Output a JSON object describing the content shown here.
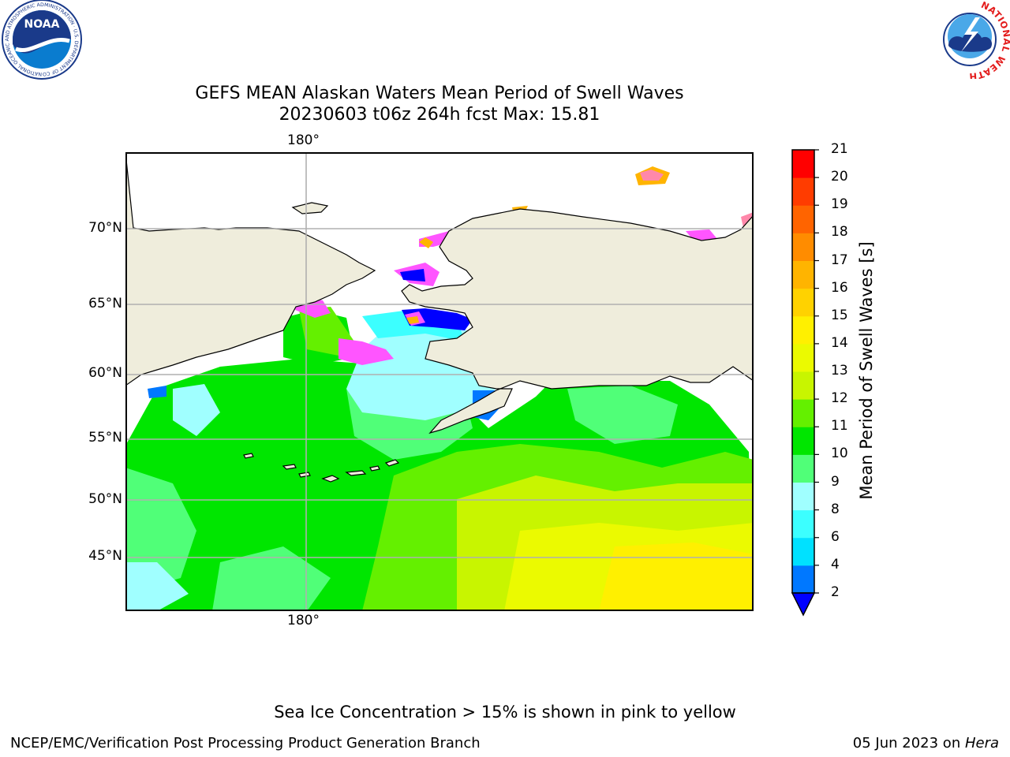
{
  "title": {
    "line1": "GEFS MEAN Alaskan Waters Mean Period of Swell Waves",
    "line2": "20230603 t06z 264h fcst   Max: 15.81"
  },
  "map": {
    "lon_label": "180°",
    "lat_labels": [
      "70°N",
      "65°N",
      "60°N",
      "55°N",
      "50°N",
      "45°N"
    ],
    "land_color": "#efeddc",
    "gridline_color": "#b0b0b0"
  },
  "colorbar": {
    "label": "Mean Period of Swell Waves [s]",
    "ticks": [
      "2",
      "4",
      "6",
      "8",
      "9",
      "10",
      "11",
      "12",
      "13",
      "14",
      "15",
      "16",
      "17",
      "18",
      "19",
      "20",
      "21"
    ],
    "colors": [
      "#0078ff",
      "#00e1ff",
      "#3cffff",
      "#a0ffff",
      "#50ff78",
      "#00e600",
      "#64f000",
      "#c8f500",
      "#ebfa00",
      "#fff000",
      "#ffd200",
      "#ffb400",
      "#ff8c00",
      "#ff6400",
      "#ff3c00",
      "#ff0000"
    ],
    "extend_color": "#0000ff"
  },
  "logos": {
    "noaa": {
      "text": "NOAA",
      "ring_text": "NATIONAL OCEANIC AND ATMOSPHERIC ADMINISTRATION · U.S. DEPARTMENT OF COMMERCE"
    },
    "nws": {
      "ring_text": "NATIONAL WEATHER SERVICE"
    }
  },
  "footer": {
    "note": "Sea Ice Concentration > 15% is shown in pink to yellow",
    "left": "NCEP/EMC/Verification Post Processing Product Generation Branch",
    "date": "05 Jun 2023 on ",
    "host": "Hera"
  }
}
